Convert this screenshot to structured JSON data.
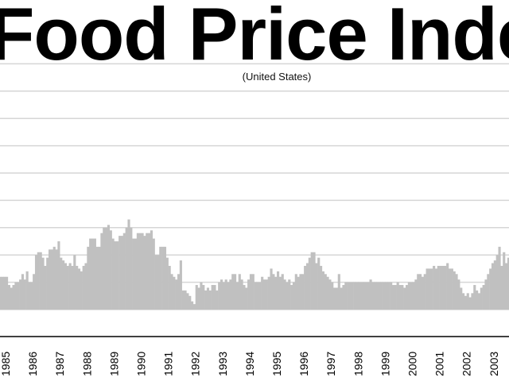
{
  "chart_data": {
    "type": "bar",
    "title": "Food Price Index",
    "subtitle": "(United States)",
    "xlabel": "",
    "ylabel": "",
    "grid": true,
    "gridlines_count": 10,
    "ylim": [
      0,
      9
    ],
    "bar_color": "#c0c0c0",
    "tick_labels": [
      "1985",
      "1986",
      "1987",
      "1988",
      "1989",
      "1990",
      "1991",
      "1992",
      "1993",
      "1994",
      "1995",
      "1996",
      "1997",
      "1998",
      "1999",
      "2000",
      "2001",
      "2002",
      "2003"
    ],
    "start": "1984-10",
    "frequency": "monthly",
    "values": [
      1.2,
      1.2,
      1.2,
      1.2,
      0.9,
      0.8,
      0.9,
      1.0,
      1.0,
      1.1,
      1.3,
      1.1,
      1.4,
      1.0,
      1.0,
      1.3,
      2.0,
      2.1,
      2.1,
      1.9,
      1.6,
      1.9,
      2.2,
      2.2,
      2.3,
      2.2,
      2.5,
      1.9,
      1.8,
      1.7,
      1.6,
      1.7,
      1.6,
      2.0,
      1.6,
      1.5,
      1.4,
      1.6,
      1.7,
      2.3,
      2.6,
      2.6,
      2.6,
      2.3,
      2.3,
      2.8,
      3.0,
      3.0,
      3.1,
      2.9,
      2.6,
      2.5,
      2.5,
      2.7,
      2.7,
      2.8,
      3.0,
      3.3,
      3.0,
      2.6,
      2.6,
      2.8,
      2.8,
      2.8,
      2.7,
      2.8,
      2.8,
      2.9,
      2.6,
      2.0,
      2.0,
      2.3,
      2.3,
      2.3,
      1.9,
      1.6,
      1.3,
      1.2,
      1.1,
      1.3,
      1.8,
      0.7,
      0.7,
      0.6,
      0.5,
      0.3,
      0.2,
      0.9,
      0.8,
      1.0,
      0.9,
      0.7,
      0.8,
      0.7,
      0.9,
      0.9,
      0.7,
      1.0,
      1.1,
      1.0,
      1.1,
      1.0,
      1.1,
      1.3,
      1.3,
      1.0,
      1.3,
      1.1,
      0.9,
      0.8,
      1.1,
      1.3,
      1.3,
      1.0,
      1.0,
      1.0,
      1.2,
      1.1,
      1.1,
      1.2,
      1.5,
      1.3,
      1.2,
      1.4,
      1.2,
      1.3,
      1.1,
      1.0,
      1.1,
      0.9,
      1.0,
      1.3,
      1.2,
      1.3,
      1.3,
      1.6,
      1.7,
      1.9,
      2.1,
      2.1,
      1.7,
      1.9,
      1.6,
      1.4,
      1.3,
      1.2,
      1.1,
      1.0,
      0.8,
      0.8,
      1.3,
      0.8,
      0.9,
      1.0,
      1.0,
      1.0,
      1.0,
      1.0,
      1.0,
      1.0,
      1.0,
      1.0,
      1.0,
      1.0,
      1.1,
      1.0,
      1.0,
      1.0,
      1.0,
      1.0,
      1.0,
      1.0,
      1.0,
      1.0,
      0.9,
      0.9,
      1.0,
      0.9,
      0.9,
      0.8,
      0.9,
      1.0,
      1.0,
      1.0,
      1.1,
      1.3,
      1.3,
      1.2,
      1.3,
      1.5,
      1.5,
      1.5,
      1.6,
      1.5,
      1.6,
      1.6,
      1.6,
      1.6,
      1.7,
      1.5,
      1.5,
      1.4,
      1.3,
      1.1,
      0.8,
      0.6,
      0.5,
      0.6,
      0.45,
      0.6,
      0.9,
      0.7,
      0.6,
      0.8,
      0.9,
      1.1,
      1.3,
      1.5,
      1.7,
      1.8,
      2.0,
      2.3,
      1.6,
      2.1,
      1.7,
      1.9
    ]
  }
}
